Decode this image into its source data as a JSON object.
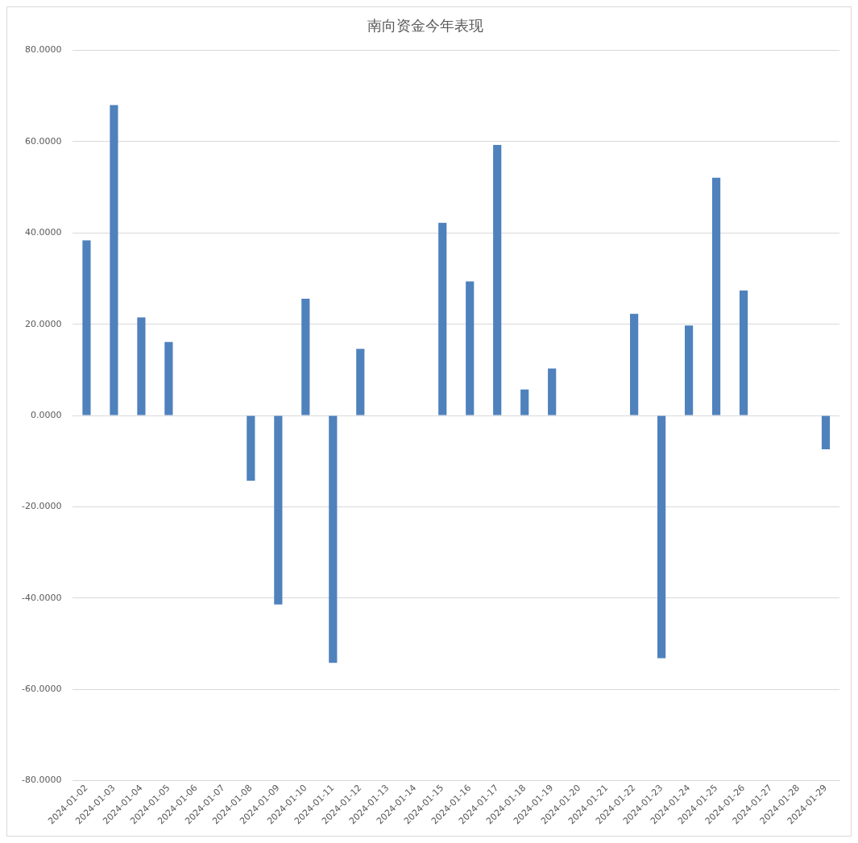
{
  "chart_data": {
    "type": "bar",
    "title": "南向资金今年表现",
    "categories": [
      "2024-01-02",
      "2024-01-03",
      "2024-01-04",
      "2024-01-05",
      "2024-01-06",
      "2024-01-07",
      "2024-01-08",
      "2024-01-09",
      "2024-01-10",
      "2024-01-11",
      "2024-01-12",
      "2024-01-13",
      "2024-01-14",
      "2024-01-15",
      "2024-01-16",
      "2024-01-17",
      "2024-01-18",
      "2024-01-19",
      "2024-01-20",
      "2024-01-21",
      "2024-01-22",
      "2024-01-23",
      "2024-01-24",
      "2024-01-25",
      "2024-01-26",
      "2024-01-27",
      "2024-01-28",
      "2024-01-29"
    ],
    "values": [
      38.4,
      68.0,
      21.5,
      16.1,
      null,
      null,
      -14.3,
      -41.4,
      25.6,
      -54.2,
      14.6,
      null,
      null,
      42.2,
      29.4,
      59.3,
      5.7,
      10.3,
      null,
      null,
      22.3,
      -53.2,
      19.7,
      52.1,
      27.4,
      null,
      null,
      -7.4
    ],
    "color": "#4f81bd",
    "ylim": [
      -80,
      80
    ],
    "yticks": [
      {
        "value": -80,
        "label": "-80.0000"
      },
      {
        "value": -60,
        "label": "-60.0000"
      },
      {
        "value": -40,
        "label": "-40.0000"
      },
      {
        "value": -20,
        "label": "-20.0000"
      },
      {
        "value": 0,
        "label": "0.0000"
      },
      {
        "value": 20,
        "label": "20.0000"
      },
      {
        "value": 40,
        "label": "40.0000"
      },
      {
        "value": 60,
        "label": "60.0000"
      },
      {
        "value": 80,
        "label": "80.0000"
      }
    ],
    "grid": "y"
  }
}
